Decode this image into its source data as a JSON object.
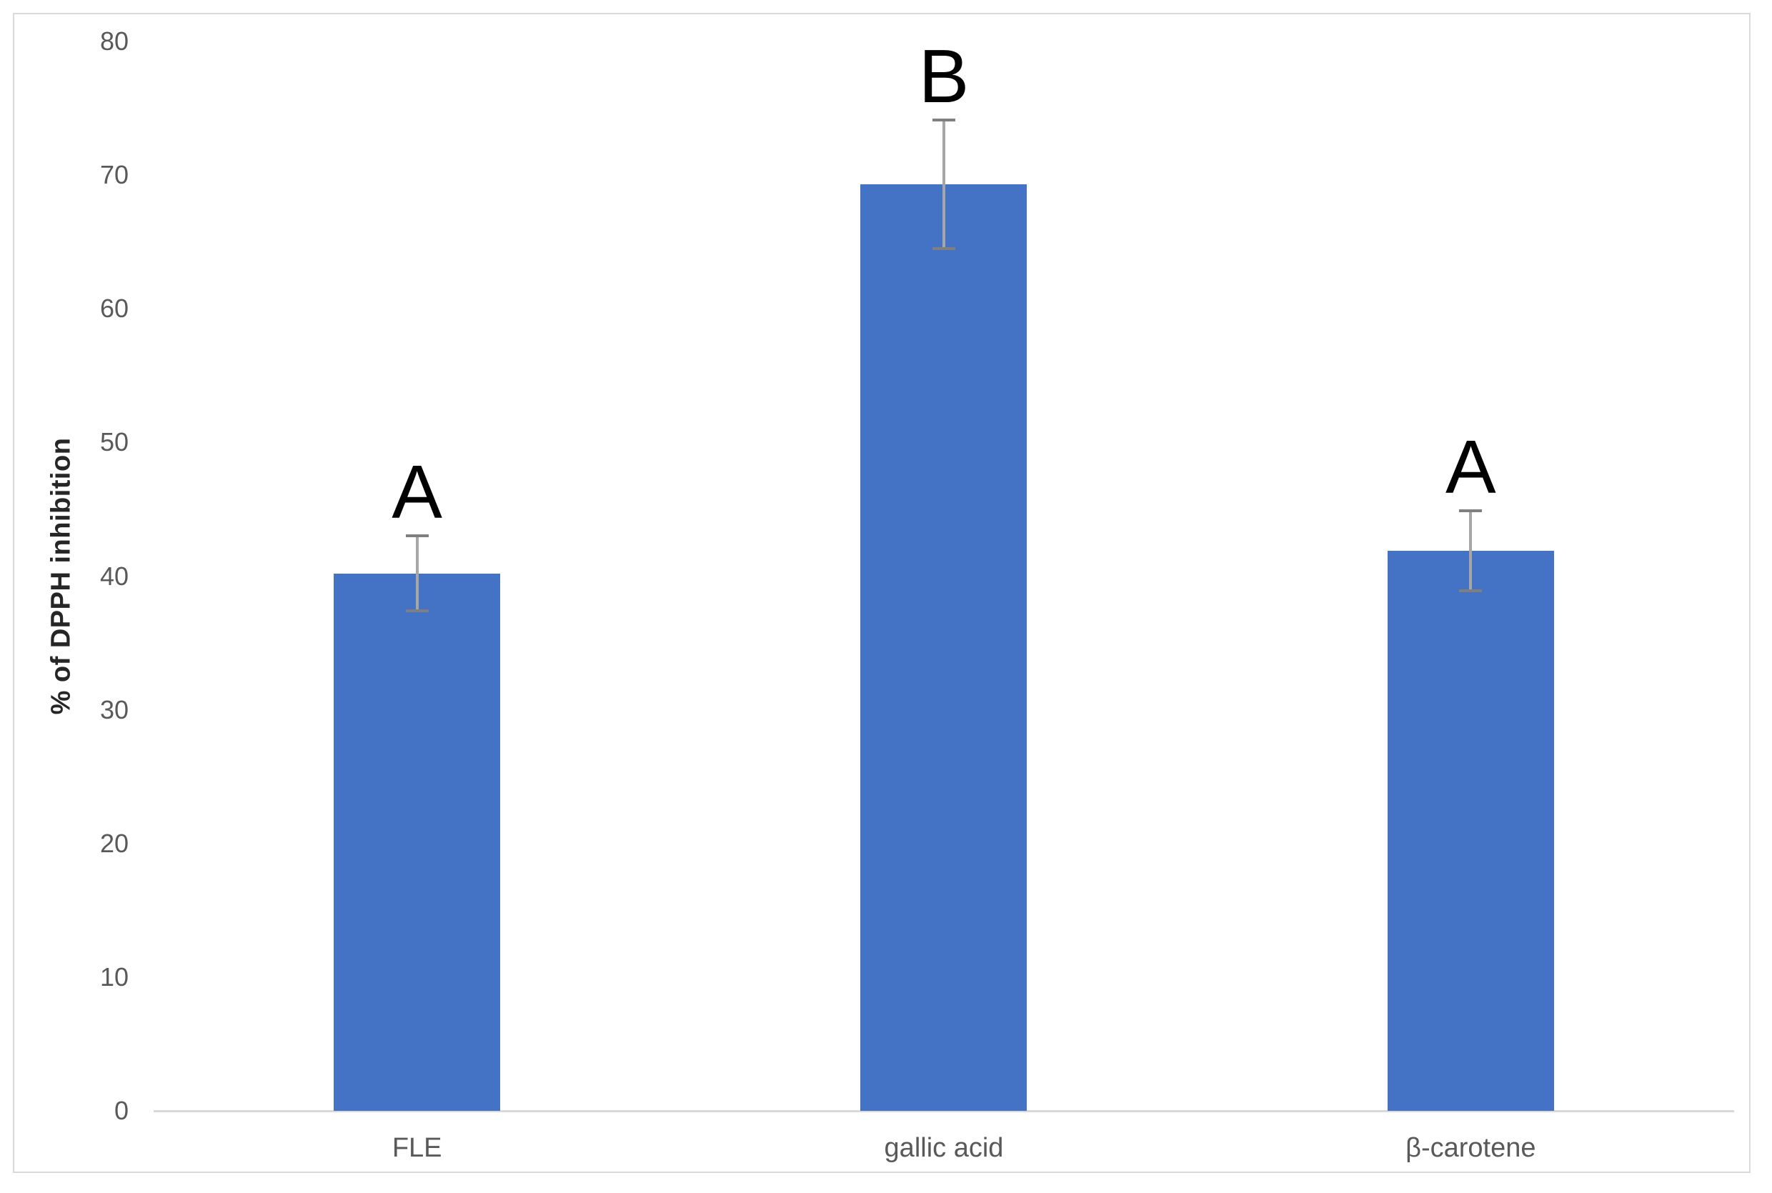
{
  "chart_data": {
    "type": "bar",
    "title": "",
    "categories": [
      "FLE",
      "gallic acid",
      "β-carotene"
    ],
    "values": [
      40.2,
      69.3,
      41.9
    ],
    "error_bars": [
      2.8,
      4.8,
      3.0
    ],
    "significance_letters": [
      "A",
      "B",
      "A"
    ],
    "xlabel": "",
    "ylabel": "% of DPPH inhibition",
    "ylim": [
      0,
      80
    ],
    "ytick_step": 10,
    "yticks": [
      0,
      10,
      20,
      30,
      40,
      50,
      60,
      70,
      80
    ],
    "grid": false,
    "legend": "none",
    "colors": {
      "bar": "#4472C4",
      "error_stem": "#A6A6A6",
      "error_cap": "#7F7F7F",
      "axis_line": "#D9D9D9",
      "tick_label": "#595959",
      "axis_title": "#262626",
      "letter": "#000000",
      "frame_border": "#D9D9D9",
      "background": "#FFFFFF"
    }
  }
}
